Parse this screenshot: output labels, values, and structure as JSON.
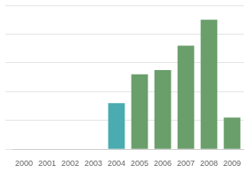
{
  "chart_data": {
    "type": "bar",
    "categories": [
      "2000",
      "2001",
      "2002",
      "2003",
      "2004",
      "2005",
      "2006",
      "2007",
      "2008",
      "2009"
    ],
    "values": [
      0,
      0,
      0,
      0,
      32,
      52,
      55,
      72,
      90,
      22
    ],
    "colors": [
      "#6a9e6a",
      "#6a9e6a",
      "#6a9e6a",
      "#6a9e6a",
      "#4aabb0",
      "#6a9e6a",
      "#6a9e6a",
      "#6a9e6a",
      "#6a9e6a",
      "#6a9e6a"
    ],
    "ylim": [
      0,
      100
    ],
    "yticks": [
      0,
      20,
      40,
      60,
      80,
      100
    ],
    "grid": true,
    "tick_labels": "x"
  }
}
